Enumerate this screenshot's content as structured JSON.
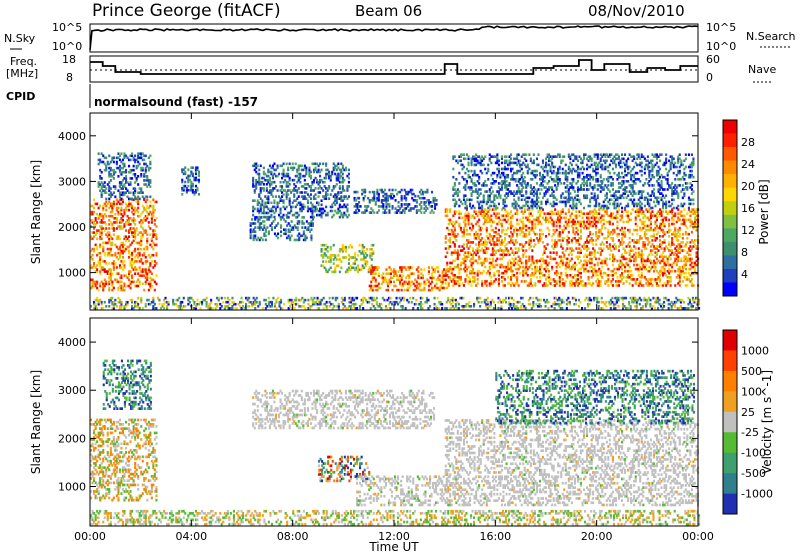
{
  "header": {
    "station": "Prince George (fitACF)",
    "beam": "Beam 06",
    "date": "08/Nov/2010"
  },
  "panels": {
    "nsky_label": "N.Sky",
    "nsky_ticks": [
      "10^5",
      "10^0"
    ],
    "nsearch_label": "N.Search",
    "nsearch_ticks": [
      "10^5",
      "10^0"
    ],
    "freq_label": "Freq.",
    "freq_unit": "[MHz]",
    "freq_ticks": [
      "18",
      "8"
    ],
    "nave_label": "Nave",
    "nave_ticks": [
      "60",
      "0"
    ],
    "cpid_label": "CPID",
    "cpid_text": "normalsound (fast) -157"
  },
  "colors": {
    "power": [
      "#0000ff",
      "#1f3fbf",
      "#2f6fa0",
      "#3f8f6f",
      "#4fa85f",
      "#7fc040",
      "#c0d010",
      "#ffd700",
      "#ffb000",
      "#ff8a00",
      "#ff5a00",
      "#ff2000",
      "#ee0000"
    ],
    "velocity": [
      "#2030b0",
      "#2f7f8f",
      "#3f9f6f",
      "#55bb33",
      "#c0c0c0",
      "#f0a020",
      "#ff7f00",
      "#ff4000",
      "#e00000"
    ]
  },
  "chart_data": [
    {
      "type": "heatmap",
      "name": "power",
      "ylabel": "Slant Range [km]",
      "ylim": [
        180,
        4500
      ],
      "yticks": [
        "4000",
        "3000",
        "2000",
        "1000"
      ],
      "colorbar_label": "Power [dB]",
      "colorbar_ticks": [
        "28",
        "24",
        "20",
        "16",
        "12",
        "8",
        "4"
      ],
      "colorbar_range": [
        0,
        30
      ],
      "scatter_regions": [
        {
          "t0": 0.0,
          "t1": 2.6,
          "r0": 600,
          "r1": 2600,
          "level": "high"
        },
        {
          "t0": 0.3,
          "t1": 2.4,
          "r0": 2600,
          "r1": 3600,
          "level": "low"
        },
        {
          "t0": 3.6,
          "t1": 4.3,
          "r0": 2700,
          "r1": 3300,
          "level": "low"
        },
        {
          "t0": 6.4,
          "t1": 10.2,
          "r0": 2200,
          "r1": 3400,
          "level": "low"
        },
        {
          "t0": 10.4,
          "t1": 13.7,
          "r0": 2300,
          "r1": 2800,
          "level": "low"
        },
        {
          "t0": 6.3,
          "t1": 8.8,
          "r0": 1700,
          "r1": 2200,
          "level": "low"
        },
        {
          "t0": 9.1,
          "t1": 11.2,
          "r0": 1000,
          "r1": 1600,
          "level": "mid"
        },
        {
          "t0": 11.0,
          "t1": 14.1,
          "r0": 600,
          "r1": 1100,
          "level": "high"
        },
        {
          "t0": 14.0,
          "t1": 24.0,
          "r0": 700,
          "r1": 2400,
          "level": "high"
        },
        {
          "t0": 14.3,
          "t1": 23.8,
          "r0": 2400,
          "r1": 3600,
          "level": "low"
        },
        {
          "t0": 0.0,
          "t1": 24.0,
          "r0": 200,
          "r1": 450,
          "level": "ground"
        }
      ]
    },
    {
      "type": "heatmap",
      "name": "velocity",
      "xlabel": "Time UT",
      "xticks": [
        "00:00",
        "04:00",
        "08:00",
        "12:00",
        "16:00",
        "20:00",
        "00:00"
      ],
      "xlim": [
        0,
        24
      ],
      "ylabel": "Slant Range [km]",
      "ylim": [
        180,
        4500
      ],
      "yticks": [
        "4000",
        "3000",
        "2000",
        "1000"
      ],
      "colorbar_label": "Velocity [m s^-1]",
      "colorbar_ticks": [
        "1000",
        "500",
        "100",
        "25",
        "-25",
        "-100",
        "-500",
        "-1000"
      ],
      "scatter_regions": [
        {
          "t0": 0.0,
          "t1": 2.6,
          "r0": 700,
          "r1": 2400,
          "level": "low"
        },
        {
          "t0": 0.5,
          "t1": 2.4,
          "r0": 2600,
          "r1": 3600,
          "level": "pos"
        },
        {
          "t0": 6.4,
          "t1": 13.6,
          "r0": 2200,
          "r1": 3000,
          "level": "gray"
        },
        {
          "t0": 9.0,
          "t1": 11.0,
          "r0": 1100,
          "r1": 1600,
          "level": "mixed"
        },
        {
          "t0": 10.5,
          "t1": 14.2,
          "r0": 600,
          "r1": 1200,
          "level": "gray"
        },
        {
          "t0": 14.0,
          "t1": 24.0,
          "r0": 600,
          "r1": 2400,
          "level": "gray"
        },
        {
          "t0": 16.0,
          "t1": 23.8,
          "r0": 2300,
          "r1": 3400,
          "level": "pos"
        },
        {
          "t0": 0.0,
          "t1": 24.0,
          "r0": 200,
          "r1": 500,
          "level": "ground"
        }
      ]
    }
  ]
}
